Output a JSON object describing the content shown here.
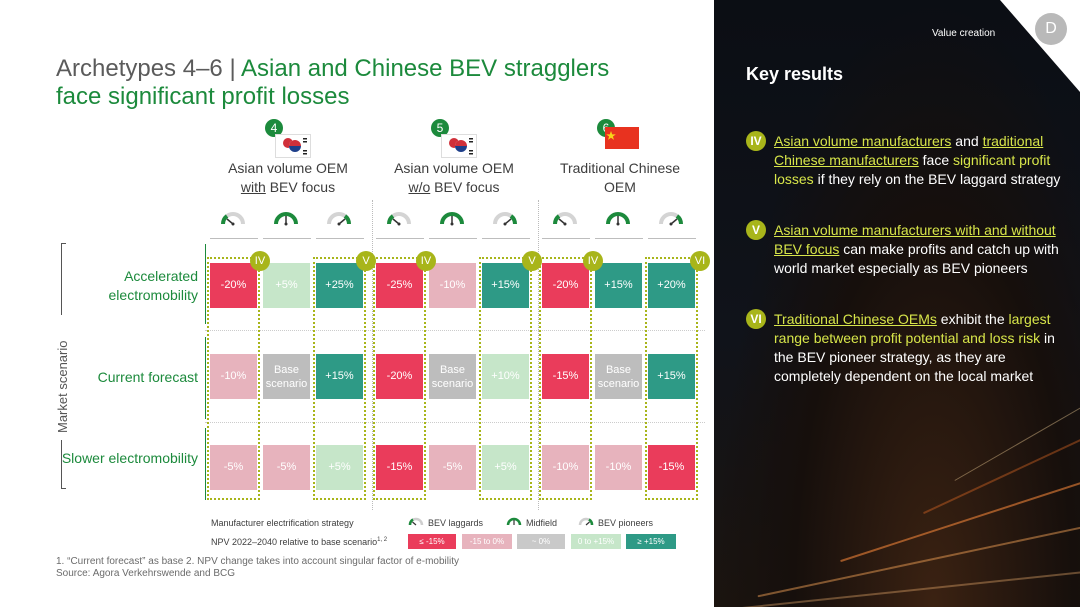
{
  "header": {
    "title_prefix": "Archetypes 4–6 | ",
    "title_main_1": "Asian and Chinese BEV stragglers",
    "title_main_2": "face significant profit losses"
  },
  "side_panel": {
    "section_label": "Value creation",
    "badge": "D",
    "heading": "Key results",
    "results": [
      {
        "numeral": "IV",
        "hl1": "Asian volume manufacturers",
        "t1": " and ",
        "hl2": "traditional Chinese manufacturers",
        "t2": " face ",
        "hn": "significant profit losses",
        "t3": " if they rely on the BEV laggard strategy"
      },
      {
        "numeral": "V",
        "hl1": "Asian volume manufacturers with and without BEV focus",
        "t1": " can make profits and catch up with world market especially as BEV pioneers"
      },
      {
        "numeral": "VI",
        "hl1": "Traditional Chinese OEMs",
        "t1": " exhibit the ",
        "hn": "largest range between profit potential and loss risk",
        "t2": " in the BEV pioneer strategy, as they are completely dependent on the local market"
      }
    ]
  },
  "colors": {
    "green": "#1c8a3c",
    "olive": "#a8b51a",
    "neg_strong": "#ea3c5b",
    "neg_light": "#e7b3bd",
    "neutral": "#c9c9c9",
    "pos_light": "#c6e6c9",
    "pos_strong": "#2e9a86"
  },
  "table": {
    "axis_label": "Market scenario",
    "rows": [
      "Accelerated electromobility",
      "Current forecast",
      "Slower electromobility"
    ],
    "strategy_icons": [
      "bev-laggards-gauge-icon",
      "midfield-gauge-icon",
      "bev-pioneers-gauge-icon"
    ],
    "groups": [
      {
        "number": "4",
        "flag": "south-korea-japan-flag-icon",
        "head_1": "Asian volume OEM",
        "head_2a": "with",
        "head_2b": " BEV focus",
        "markers": [
          "IV",
          "V"
        ],
        "cells": [
          [
            "-20%",
            "+5%",
            "+25%"
          ],
          [
            "-10%",
            "Base scenario",
            "+15%"
          ],
          [
            "-5%",
            "-5%",
            "+5%"
          ]
        ]
      },
      {
        "number": "5",
        "flag": "south-korea-japan-flag-icon",
        "head_1": "Asian volume OEM",
        "head_2a": "w/o",
        "head_2b": " BEV focus",
        "markers": [
          "IV",
          "V"
        ],
        "cells": [
          [
            "-25%",
            "-10%",
            "+15%"
          ],
          [
            "-20%",
            "Base scenario",
            "+10%"
          ],
          [
            "-15%",
            "-5%",
            "+5%"
          ]
        ]
      },
      {
        "number": "6",
        "flag": "china-flag-icon",
        "head_1": "Traditional Chinese",
        "head_2a": "",
        "head_2b": "OEM",
        "markers": [
          "IV",
          "VI"
        ],
        "cells": [
          [
            "-20%",
            "+15%",
            "+20%"
          ],
          [
            "-15%",
            "Base scenario",
            "+15%"
          ],
          [
            "-10%",
            "-10%",
            "-15%"
          ]
        ]
      }
    ]
  },
  "legend": {
    "strategy_label": "Manufacturer electrification strategy",
    "items": [
      "BEV laggards",
      "Midfield",
      "BEV pioneers"
    ],
    "npv_label": "NPV 2022–2040 relative to base scenario",
    "npv_sup": "1, 2",
    "npv_bins": [
      "≤ -15%",
      "-15 to 0%",
      "~ 0%",
      "0 to +15%",
      "≥ +15%"
    ]
  },
  "footnotes": {
    "line1": "1. “Current forecast” as base 2. NPV change takes into account singular factor of e-mobility",
    "line2": "Source: Agora Verkehrswende and BCG"
  }
}
